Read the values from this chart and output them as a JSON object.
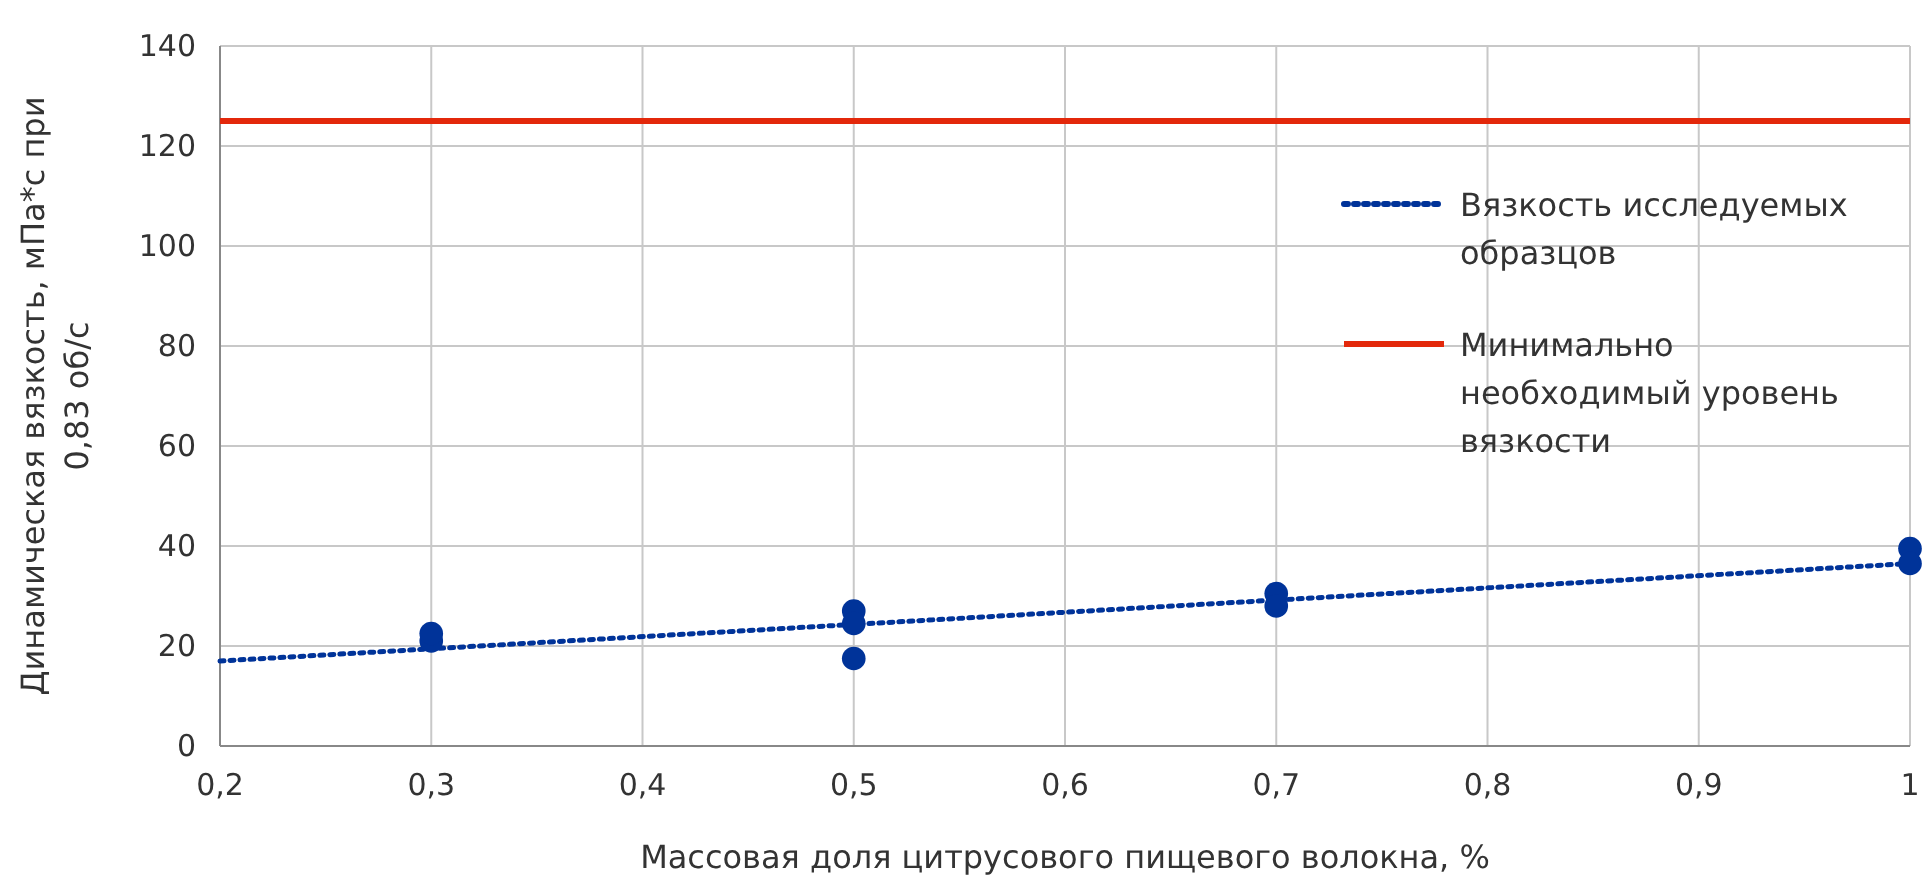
{
  "chart_data": {
    "type": "scatter",
    "xlabel": "Массовая доля цитрусового пищевого волокна, %",
    "ylabel": "Динамическая вязкость, мПа*с при 0,83 об/с",
    "xlim": [
      0.2,
      1
    ],
    "ylim": [
      0,
      140
    ],
    "xticks": [
      {
        "value": 0.2,
        "label": "0,2"
      },
      {
        "value": 0.3,
        "label": "0,3"
      },
      {
        "value": 0.4,
        "label": "0,4"
      },
      {
        "value": 0.5,
        "label": "0,5"
      },
      {
        "value": 0.6,
        "label": "0,6"
      },
      {
        "value": 0.7,
        "label": "0,7"
      },
      {
        "value": 0.8,
        "label": "0,8"
      },
      {
        "value": 0.9,
        "label": "0,9"
      },
      {
        "value": 1,
        "label": "1"
      }
    ],
    "yticks": [
      0,
      20,
      40,
      60,
      80,
      100,
      120,
      140
    ],
    "grid": true,
    "legend": "right",
    "series": [
      {
        "marker": "circle",
        "color": "#003399",
        "x": [
          0.3,
          0.3,
          0.5,
          0.5,
          0.5,
          0.7,
          0.7,
          1,
          1
        ],
        "values": [
          21,
          22.5,
          27,
          24.5,
          17.5,
          30.5,
          28,
          39.5,
          36.5
        ]
      },
      {
        "type": "line",
        "name": "Вязкость исследуемых образцов",
        "color": "#003399",
        "line_style": "dotted",
        "x": [
          0.2,
          1
        ],
        "values": [
          17,
          36.5
        ]
      },
      {
        "type": "line",
        "name": "Минимально необходимый уровень вязкости",
        "color": "#e3280b",
        "line_style": "solid",
        "x": [
          0.2,
          1
        ],
        "values": [
          125,
          125
        ]
      }
    ]
  }
}
